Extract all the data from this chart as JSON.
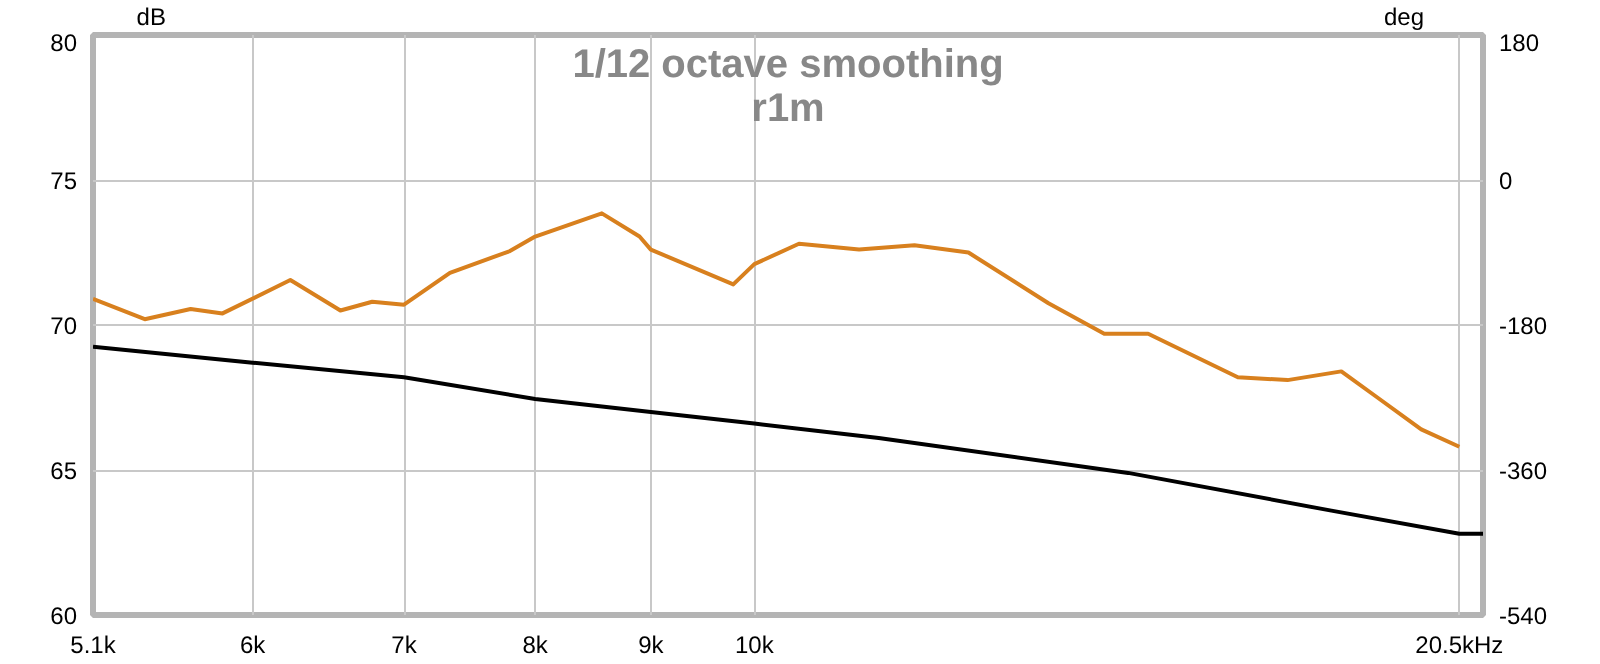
{
  "chart_data": {
    "type": "line",
    "title": "1/12 octave smoothing",
    "subtitle": "r1m",
    "ylabel": "dB",
    "y2label": "deg",
    "log": "x",
    "grid": true,
    "marker": "none",
    "line_style": "solid",
    "xlim": [
      5.1,
      21
    ],
    "xticks": [
      {
        "value": 5.1,
        "label": "5.1k"
      },
      {
        "value": 6,
        "label": "6k"
      },
      {
        "value": 7,
        "label": "7k"
      },
      {
        "value": 8,
        "label": "8k"
      },
      {
        "value": 9,
        "label": "9k"
      },
      {
        "value": 10,
        "label": "10k"
      },
      {
        "value": 20.5,
        "label": "20.5kHz"
      }
    ],
    "ylim": [
      60,
      80
    ],
    "yticks": [
      60,
      65,
      70,
      75,
      80
    ],
    "y2lim": [
      -540,
      180
    ],
    "y2ticks": [
      -540,
      -360,
      -180,
      0,
      180
    ],
    "series": [
      {
        "color": "#d8801e",
        "x": [
          5.1,
          5.376,
          5.633,
          5.819,
          6.235,
          6.561,
          6.777,
          7.0,
          7.335,
          7.797,
          8.0,
          8.562,
          8.897,
          9.0,
          9.788,
          10.0,
          10.465,
          11.126,
          11.771,
          12.436,
          13.492,
          14.28,
          14.933,
          16.361,
          17.21,
          18.179,
          18.859,
          19.72,
          20.5
        ],
        "values": [
          70.9,
          70.2,
          70.55,
          70.4,
          71.55,
          70.5,
          70.8,
          70.7,
          71.8,
          72.55,
          73.05,
          73.85,
          73.05,
          72.6,
          71.4,
          72.1,
          72.8,
          72.6,
          72.75,
          72.5,
          70.75,
          69.7,
          69.7,
          68.2,
          68.1,
          68.4,
          67.5,
          66.4,
          65.8
        ]
      },
      {
        "color": "#000000",
        "x": [
          5.1,
          6.0,
          7.0,
          8.0,
          9.0,
          10.0,
          11.35,
          14.633,
          17.996,
          20.5,
          21.0
        ],
        "values": [
          69.25,
          68.7,
          68.2,
          67.45,
          67.0,
          66.6,
          66.1,
          64.9,
          63.6,
          62.8,
          62.8
        ]
      }
    ]
  }
}
